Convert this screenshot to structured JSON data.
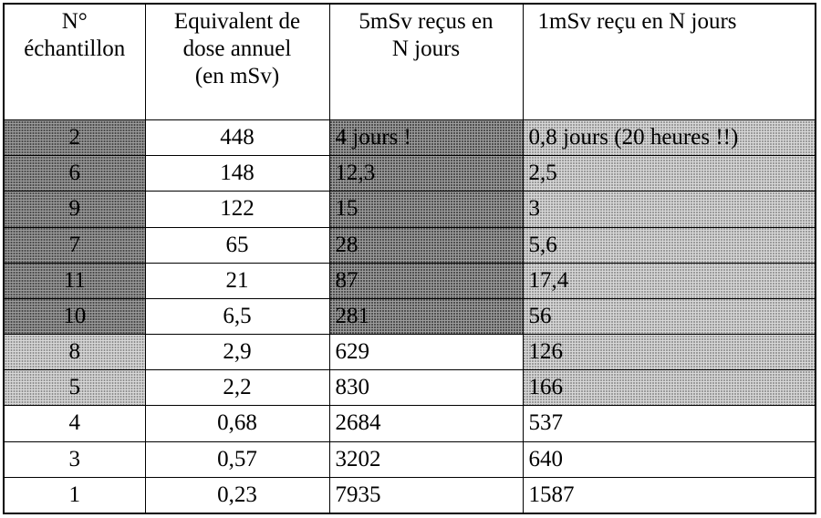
{
  "table": {
    "header": [
      [
        "N°",
        "échantillon"
      ],
      [
        "Equivalent de",
        "dose annuel",
        "(en mSv)"
      ],
      [
        "5mSv reçus en",
        "N jours"
      ],
      [
        "1mSv reçu en N jours"
      ]
    ],
    "rows": [
      [
        "2",
        "448",
        "4 jours !",
        "0,8 jours (20 heures !!)"
      ],
      [
        "6",
        "148",
        "12,3",
        "2,5"
      ],
      [
        "9",
        "122",
        "15",
        "3"
      ],
      [
        "7",
        "65",
        "28",
        "5,6"
      ],
      [
        "11",
        "21",
        "87",
        "17,4"
      ],
      [
        "10",
        "6,5",
        "281",
        "56"
      ],
      [
        "8",
        "2,9",
        "629",
        "126"
      ],
      [
        "5",
        "2,2",
        "830",
        "166"
      ],
      [
        "4",
        "0,68",
        "2684",
        "537"
      ],
      [
        "3",
        "0,57",
        "3202",
        "640"
      ],
      [
        "1",
        "0,23",
        "7935",
        "1587"
      ]
    ]
  }
}
